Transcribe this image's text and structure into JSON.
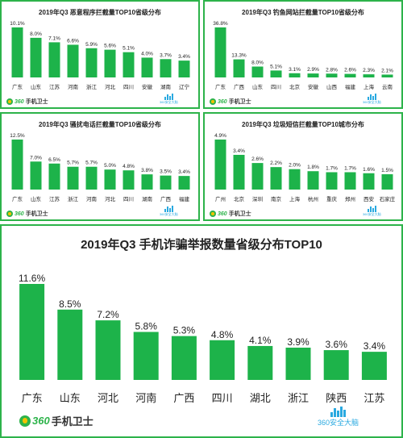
{
  "brand": {
    "logo_number": "360",
    "logo_text": "手机卫士",
    "partner_number": "360",
    "partner_text": "安全大脑"
  },
  "colors": {
    "bar": "#1db34a",
    "border": "#2db34a",
    "text": "#222222",
    "partner": "#29a9e0"
  },
  "chart_data": [
    {
      "type": "bar",
      "title": "2019年Q3 恶意程序拦截量TOP10省级分布",
      "categories": [
        "广东",
        "山东",
        "江苏",
        "河南",
        "浙江",
        "河北",
        "四川",
        "安徽",
        "湖南",
        "辽宁"
      ],
      "values": [
        10.1,
        8.0,
        7.1,
        6.6,
        5.9,
        5.6,
        5.1,
        4.0,
        3.7,
        3.4
      ],
      "value_labels": [
        "10.1%",
        "8.0%",
        "7.1%",
        "6.6%",
        "5.9%",
        "5.6%",
        "5.1%",
        "4.0%",
        "3.7%",
        "3.4%"
      ],
      "ylim": [
        0,
        10.1
      ]
    },
    {
      "type": "bar",
      "title": "2019年Q3 钓鱼网站拦截量TOP10省级分布",
      "categories": [
        "广东",
        "广西",
        "山东",
        "四川",
        "北京",
        "安徽",
        "山西",
        "福建",
        "上海",
        "云南"
      ],
      "values": [
        36.8,
        13.3,
        8.0,
        5.1,
        3.1,
        2.9,
        2.8,
        2.6,
        2.3,
        2.1
      ],
      "value_labels": [
        "36.8%",
        "13.3%",
        "8.0%",
        "5.1%",
        "3.1%",
        "2.9%",
        "2.8%",
        "2.6%",
        "2.3%",
        "2.1%"
      ],
      "ylim": [
        0,
        36.8
      ]
    },
    {
      "type": "bar",
      "title": "2019年Q3 骚扰电话拦截量TOP10省级分布",
      "categories": [
        "广东",
        "山东",
        "江苏",
        "浙江",
        "河南",
        "河北",
        "四川",
        "湖南",
        "广西",
        "福建"
      ],
      "values": [
        12.5,
        7.0,
        6.5,
        5.7,
        5.7,
        5.0,
        4.8,
        3.8,
        3.5,
        3.4
      ],
      "value_labels": [
        "12.5%",
        "7.0%",
        "6.5%",
        "5.7%",
        "5.7%",
        "5.0%",
        "4.8%",
        "3.8%",
        "3.5%",
        "3.4%"
      ],
      "ylim": [
        0,
        12.5
      ]
    },
    {
      "type": "bar",
      "title": "2019年Q3 垃圾短信拦截量TOP10城市分布",
      "categories": [
        "广州",
        "北京",
        "深圳",
        "南京",
        "上海",
        "杭州",
        "重庆",
        "郑州",
        "西安",
        "石家庄"
      ],
      "values": [
        4.9,
        3.4,
        2.6,
        2.2,
        2.0,
        1.8,
        1.7,
        1.7,
        1.6,
        1.5
      ],
      "value_labels": [
        "4.9%",
        "3.4%",
        "2.6%",
        "2.2%",
        "2.0%",
        "1.8%",
        "1.7%",
        "1.7%",
        "1.6%",
        "1.5%"
      ],
      "ylim": [
        0,
        4.9
      ]
    },
    {
      "type": "bar",
      "title": "2019年Q3 手机诈骗举报数量省级分布TOP10",
      "categories": [
        "广东",
        "山东",
        "河北",
        "河南",
        "广西",
        "四川",
        "湖北",
        "浙江",
        "陕西",
        "江苏"
      ],
      "values": [
        11.6,
        8.5,
        7.2,
        5.8,
        5.3,
        4.8,
        4.1,
        3.9,
        3.6,
        3.4
      ],
      "value_labels": [
        "11.6%",
        "8.5%",
        "7.2%",
        "5.8%",
        "5.3%",
        "4.8%",
        "4.1%",
        "3.9%",
        "3.6%",
        "3.4%"
      ],
      "ylim": [
        0,
        11.6
      ]
    }
  ]
}
